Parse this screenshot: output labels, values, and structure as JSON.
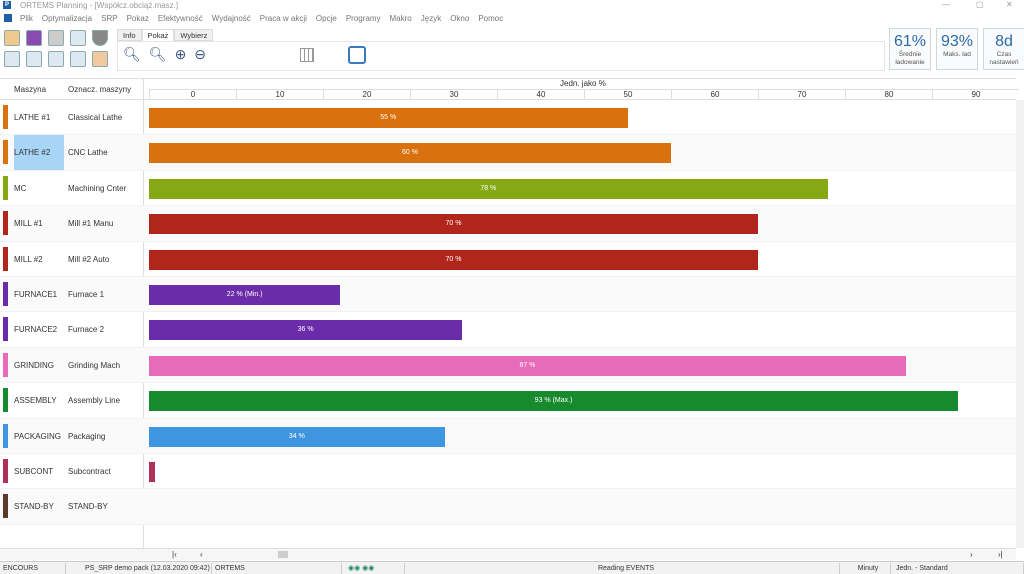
{
  "window": {
    "title": "ORTEMS  Planning - [Współcz.obciąż.masz.]",
    "logo": "P"
  },
  "menu": [
    "Plik",
    "Optymalizacja",
    "SRP",
    "Pokaz",
    "Efektywność",
    "Wydajność",
    "Praca w akcji",
    "Opcje",
    "Programy",
    "Makro",
    "Język",
    "Okno",
    "Pomoc"
  ],
  "tabs": [
    "Info",
    "Pokaż",
    "Wybierz"
  ],
  "kpis": [
    {
      "value": "61%",
      "label": "Średnie ładowanie"
    },
    {
      "value": "93%",
      "label": "Maks. ład"
    },
    {
      "value": "8d",
      "label": "Czas nastawień"
    }
  ],
  "columns": {
    "machine": "Maszyna",
    "desc": "Oznacz. maszyny",
    "axis_title": "Jedn. jako %"
  },
  "chart_data": {
    "type": "bar",
    "orientation": "horizontal",
    "xlabel": "Jedn. jako %",
    "xlim": [
      0,
      100
    ],
    "xticks": [
      0,
      10,
      20,
      30,
      40,
      50,
      60,
      70,
      80,
      90
    ],
    "categories": [
      "LATHE #1",
      "LATHE #2",
      "MC",
      "MILL #1",
      "MILL #2",
      "FURNACE1",
      "FURNACE2",
      "GRINDING",
      "ASSEMBLY",
      "PACKAGING",
      "SUBCONT",
      "STAND-BY"
    ],
    "descriptions": [
      "Classical Lathe",
      "CNC Lathe",
      "Machining Cnter",
      "Mill #1 Manu",
      "Mill #2 Auto",
      "Furnace 1",
      "Furnace 2",
      "Grinding Mach",
      "Assembly Line",
      "Packaging",
      "Subcontract",
      "STAND-BY"
    ],
    "values": [
      55,
      60,
      78,
      70,
      70,
      22,
      36,
      87,
      93,
      34,
      0.7,
      0
    ],
    "labels": [
      "55 %",
      "60 %",
      "78 %",
      "70 %",
      "70 %",
      "22 % (Min.)",
      "36 %",
      "87 %",
      "93 % (Max.)",
      "34 %",
      "",
      ""
    ],
    "colors": [
      "#d9720e",
      "#d9720e",
      "#86a814",
      "#b0261a",
      "#b0261a",
      "#6a2ca8",
      "#6a2ca8",
      "#e76bb8",
      "#178a2e",
      "#3f96e0",
      "#b0305a",
      "#5a3a28"
    ]
  },
  "status": {
    "left": "ENCOURS",
    "pack": "PS_SRP demo pack (12.03.2020 09:42)",
    "user": "ORTEMS",
    "message": "Reading EVENTS",
    "unit": "Minuty",
    "mode": "Jedn. - Standard"
  }
}
